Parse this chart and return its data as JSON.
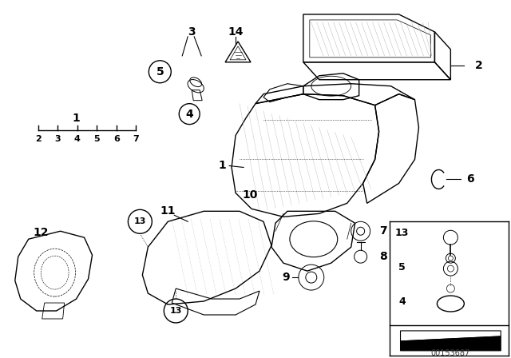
{
  "bg_color": "#ffffff",
  "image_id": "00153687",
  "black": "#000000",
  "gray": "#666666",
  "lightgray": "#aaaaaa"
}
